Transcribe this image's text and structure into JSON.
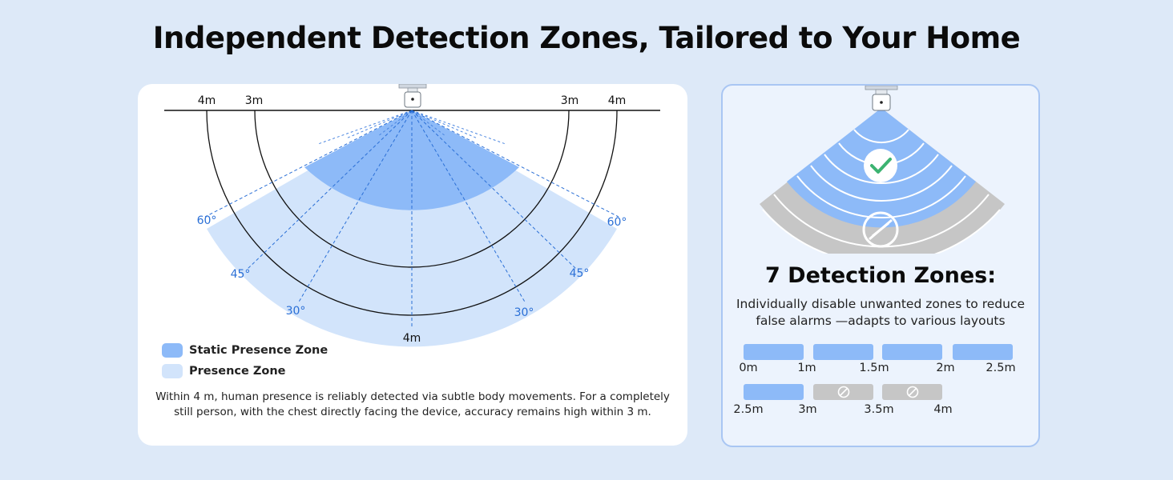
{
  "header": {
    "title": "Independent Detection Zones, Tailored to Your Home"
  },
  "diagram": {
    "labels_top_left": [
      "4m",
      "3m"
    ],
    "labels_top_right": [
      "3m",
      "4m"
    ],
    "label_bottom": "4m",
    "angle_left": [
      "60°",
      "45°",
      "30°"
    ],
    "angle_right": [
      "60°",
      "45°",
      "30°"
    ]
  },
  "legend": [
    {
      "label": "Static Presence Zone",
      "color": "#8dbaf8"
    },
    {
      "label": "Presence Zone",
      "color": "#d2e4fb"
    }
  ],
  "note": "Within 4 m, human presence is reliably detected via subtle body movements.  For a completely still person, with the chest directly facing the device, accuracy  remains high within 3 m.",
  "zones_panel": {
    "title": "7 Detection Zones:",
    "subtitle_line1": "Individually disable unwanted zones to reduce",
    "subtitle_line2": "false alarms —adapts to  various layouts",
    "row1_labels": [
      "0m",
      "1m",
      "1.5m",
      "2m",
      "2.5m"
    ],
    "row2_labels": [
      "2.5m",
      "3m",
      "3.5m",
      "4m"
    ],
    "row1_states": [
      "enabled",
      "enabled",
      "enabled",
      "enabled"
    ],
    "row2_states": [
      "enabled",
      "disabled",
      "disabled"
    ]
  },
  "colors": {
    "static_zone": "#8dbaf8",
    "presence_zone": "#d2e4fb",
    "disabled_zone": "#c6c6c6",
    "check": "#3cb371",
    "angle_text": "#2a6fd6"
  }
}
